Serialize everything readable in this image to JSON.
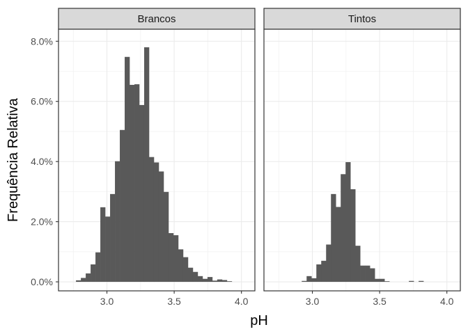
{
  "chart_data": {
    "type": "bar",
    "subtype": "faceted-histogram",
    "title": "",
    "xlabel": "pH",
    "ylabel": "Frequência Relativa",
    "xlim": [
      2.64,
      4.1
    ],
    "ylim": [
      -0.3,
      8.4
    ],
    "x_ticks": [
      3.0,
      3.5,
      4.0
    ],
    "x_tick_labels": [
      "3.0",
      "3.5",
      "4.0"
    ],
    "y_ticks": [
      0,
      2,
      4,
      6,
      8
    ],
    "y_tick_labels": [
      "0.0%",
      "2.0%",
      "4.0%",
      "6.0%",
      "8.0%"
    ],
    "bin_width": 0.0362,
    "grid": true,
    "facets": [
      {
        "label": "Brancos",
        "bin_start": 2.77,
        "values": [
          0.05,
          0.13,
          0.28,
          0.58,
          0.98,
          2.48,
          2.17,
          2.92,
          4.01,
          5.05,
          7.48,
          6.55,
          6.57,
          5.88,
          7.8,
          4.15,
          3.97,
          3.67,
          2.99,
          1.62,
          1.55,
          1.08,
          0.82,
          0.47,
          0.33,
          0.19,
          0.1,
          0.16,
          0.04,
          0.08,
          0.06,
          0.02
        ]
      },
      {
        "label": "Tintos",
        "bin_start": 2.74,
        "values": [
          0,
          0,
          0,
          0,
          0,
          0.03,
          0.19,
          0.12,
          0.58,
          0.7,
          1.24,
          2.92,
          2.49,
          3.58,
          3.98,
          3.08,
          1.2,
          0.54,
          0.54,
          0.45,
          0.1,
          0.1,
          0.02,
          0,
          0,
          0,
          0,
          0.03,
          0,
          0.03,
          0,
          0
        ]
      }
    ]
  }
}
